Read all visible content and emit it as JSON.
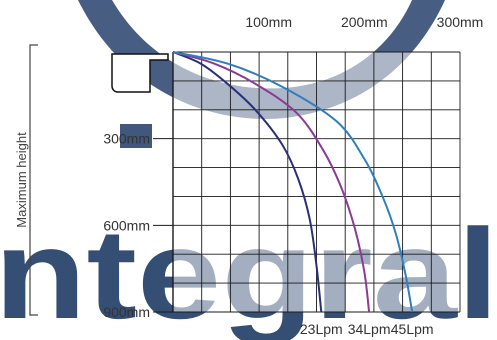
{
  "watermark": {
    "text": "ntegral",
    "colors": {
      "arc": "#1f3b66",
      "letters": "#1f3b66"
    }
  },
  "chart_data": {
    "type": "line",
    "title": "",
    "x_axis": {
      "label": "",
      "position": "top",
      "ticks": [
        "100mm",
        "200mm",
        "300mm"
      ],
      "tick_values": [
        100,
        200,
        300
      ],
      "range": [
        0,
        300
      ]
    },
    "y_axis": {
      "label": "Maximum height",
      "position": "left",
      "inverted": true,
      "ticks": [
        "300mm",
        "600mm",
        "900mm"
      ],
      "tick_values": [
        300,
        600,
        900
      ],
      "range": [
        0,
        900
      ]
    },
    "grid": true,
    "series": [
      {
        "name": "23Lpm",
        "color": "#2a2f7a",
        "x": [
          0,
          29,
          57,
          86,
          114,
          131,
          143,
          150,
          155
        ],
        "y": [
          0,
          40,
          110,
          200,
          320,
          440,
          580,
          740,
          900
        ]
      },
      {
        "name": "34Lpm",
        "color": "#8b3a96",
        "x": [
          0,
          43,
          86,
          129,
          157,
          176,
          190,
          200,
          205
        ],
        "y": [
          0,
          40,
          110,
          210,
          340,
          470,
          610,
          760,
          900
        ]
      },
      {
        "name": "45Lpm",
        "color": "#2f7fbf",
        "x": [
          0,
          57,
          114,
          171,
          200,
          219,
          233,
          243,
          250
        ],
        "y": [
          0,
          40,
          120,
          240,
          370,
          500,
          630,
          770,
          900
        ]
      }
    ]
  }
}
